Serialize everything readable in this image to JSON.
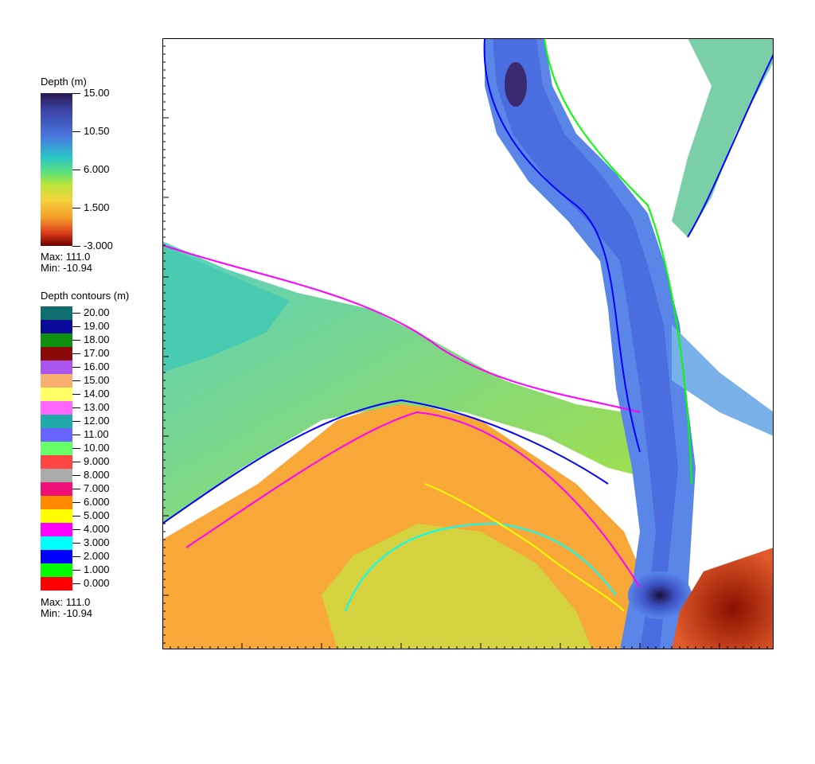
{
  "depth_legend": {
    "title": "Depth (m)",
    "ticks": [
      "15.00",
      "10.50",
      "6.000",
      "1.500",
      "-3.000"
    ],
    "max": "Max:  111.0",
    "min": "Min: -10.94"
  },
  "contour_legend": {
    "title": "Depth contours (m)",
    "items": [
      {
        "label": "20.00",
        "color": "#0f6f6f"
      },
      {
        "label": "19.00",
        "color": "#0a0a9a"
      },
      {
        "label": "18.00",
        "color": "#0e8f0e"
      },
      {
        "label": "17.00",
        "color": "#8a0a0a"
      },
      {
        "label": "16.00",
        "color": "#aa55ee"
      },
      {
        "label": "15.00",
        "color": "#f7b070"
      },
      {
        "label": "14.00",
        "color": "#ffff66"
      },
      {
        "label": "13.00",
        "color": "#ff66ff"
      },
      {
        "label": "12.00",
        "color": "#22aaaa"
      },
      {
        "label": "11.00",
        "color": "#6666ff"
      },
      {
        "label": "10.00",
        "color": "#66ff66"
      },
      {
        "label": "9.000",
        "color": "#ff4444"
      },
      {
        "label": "8.000",
        "color": "#aaaaaa"
      },
      {
        "label": "7.000",
        "color": "#ee1177"
      },
      {
        "label": "6.000",
        "color": "#ff8800"
      },
      {
        "label": "5.000",
        "color": "#ffff00"
      },
      {
        "label": "4.000",
        "color": "#ff00ff"
      },
      {
        "label": "3.000",
        "color": "#00ffff"
      },
      {
        "label": "2.000",
        "color": "#0000ff"
      },
      {
        "label": "1.000",
        "color": "#00ff00"
      },
      {
        "label": "0.000",
        "color": "#ff0000"
      }
    ],
    "max": "Max:  111.0",
    "min": "Min: -10.94"
  }
}
